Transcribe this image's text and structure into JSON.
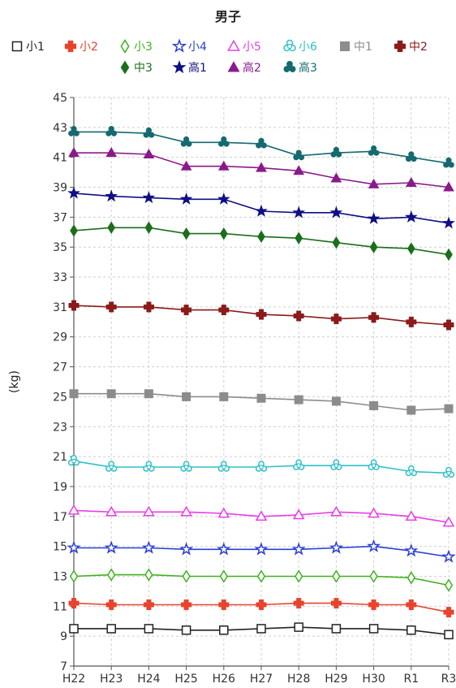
{
  "chart_data": {
    "type": "line",
    "title": "男子",
    "ylabel": "(kg)",
    "xlabel": "",
    "categories": [
      "H22",
      "H23",
      "H24",
      "H25",
      "H26",
      "H27",
      "H28",
      "H29",
      "H30",
      "R1",
      "R3"
    ],
    "ylim": [
      7,
      45
    ],
    "yticks": [
      7,
      9,
      11,
      13,
      15,
      17,
      19,
      21,
      23,
      25,
      27,
      29,
      31,
      33,
      35,
      37,
      39,
      41,
      43,
      45
    ],
    "grid": true,
    "legend_position": "top",
    "series": [
      {
        "name": "小1",
        "color": "#222222",
        "marker": "square-open",
        "values": [
          9.5,
          9.5,
          9.5,
          9.4,
          9.4,
          9.5,
          9.6,
          9.5,
          9.5,
          9.4,
          9.1
        ]
      },
      {
        "name": "小2",
        "color": "#e8432d",
        "marker": "plus",
        "values": [
          11.2,
          11.1,
          11.1,
          11.1,
          11.1,
          11.1,
          11.2,
          11.2,
          11.1,
          11.1,
          10.6
        ]
      },
      {
        "name": "小3",
        "color": "#3cb21b",
        "marker": "diamond-open",
        "values": [
          13.0,
          13.1,
          13.1,
          13.0,
          13.0,
          13.0,
          13.0,
          13.0,
          13.0,
          12.9,
          12.4
        ]
      },
      {
        "name": "小4",
        "color": "#2a3fd4",
        "marker": "star-open",
        "values": [
          14.9,
          14.9,
          14.9,
          14.8,
          14.8,
          14.8,
          14.8,
          14.9,
          15.0,
          14.7,
          14.3
        ]
      },
      {
        "name": "小5",
        "color": "#e93de9",
        "marker": "triangle-open",
        "values": [
          17.4,
          17.3,
          17.3,
          17.3,
          17.2,
          17.0,
          17.1,
          17.3,
          17.2,
          17.0,
          16.6
        ]
      },
      {
        "name": "小6",
        "color": "#2fc0c8",
        "marker": "tri-open",
        "values": [
          20.7,
          20.3,
          20.3,
          20.3,
          20.3,
          20.3,
          20.4,
          20.4,
          20.4,
          20.0,
          19.9
        ]
      },
      {
        "name": "中1",
        "color": "#8c8c8c",
        "marker": "square",
        "values": [
          25.2,
          25.2,
          25.2,
          25.0,
          25.0,
          24.9,
          24.8,
          24.7,
          24.4,
          24.1,
          24.2
        ]
      },
      {
        "name": "中2",
        "color": "#8b1a1a",
        "marker": "plus",
        "values": [
          31.1,
          31.0,
          31.0,
          30.8,
          30.8,
          30.5,
          30.4,
          30.2,
          30.3,
          30.0,
          29.8
        ]
      },
      {
        "name": "中3",
        "color": "#1b6e1b",
        "marker": "diamond",
        "values": [
          36.1,
          36.3,
          36.3,
          35.9,
          35.9,
          35.7,
          35.6,
          35.3,
          35.0,
          34.9,
          34.5
        ]
      },
      {
        "name": "高1",
        "color": "#0e0f86",
        "marker": "star",
        "values": [
          38.6,
          38.4,
          38.3,
          38.2,
          38.2,
          37.4,
          37.3,
          37.3,
          36.9,
          37.0,
          36.6
        ]
      },
      {
        "name": "高2",
        "color": "#8a1a8a",
        "marker": "triangle",
        "values": [
          41.3,
          41.3,
          41.2,
          40.4,
          40.4,
          40.3,
          40.1,
          39.6,
          39.2,
          39.3,
          39.0
        ]
      },
      {
        "name": "高3",
        "color": "#146a70",
        "marker": "tri",
        "values": [
          42.7,
          42.7,
          42.6,
          42.0,
          42.0,
          41.9,
          41.1,
          41.3,
          41.4,
          41.0,
          40.6
        ]
      }
    ]
  }
}
